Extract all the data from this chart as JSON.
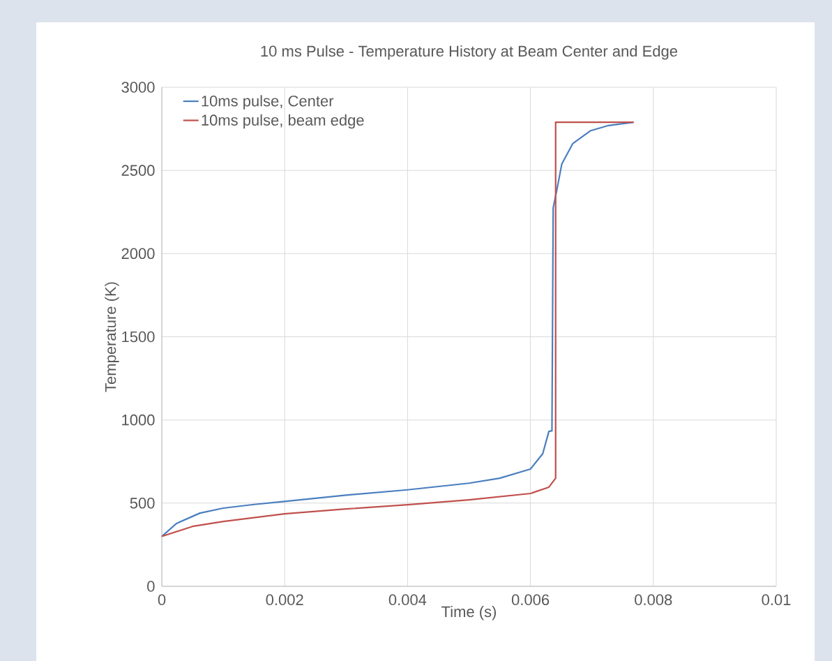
{
  "chart_data": {
    "type": "line",
    "title": "10 ms Pulse - Temperature History at Beam Center and Edge",
    "xlabel": "Time (s)",
    "ylabel": "Temperature (K)",
    "xlim": [
      0,
      0.01
    ],
    "xticks": [
      0,
      0.002,
      0.004,
      0.006,
      0.008,
      0.01
    ],
    "ylim": [
      0,
      3000
    ],
    "yticks": [
      0,
      500,
      1000,
      1500,
      2000,
      2500,
      3000
    ],
    "grid": true,
    "legend": "top left",
    "marker": "none",
    "line_style": "solid",
    "series": [
      {
        "name": "10ms pulse, Center",
        "color": "#4a7ebf",
        "x": [
          0,
          0.00024,
          0.00062,
          0.001,
          0.0015,
          0.002,
          0.003,
          0.004,
          0.005,
          0.0055,
          0.006,
          0.0062,
          0.0063,
          0.00635,
          0.00637,
          0.00643,
          0.00651,
          0.00669,
          0.00698,
          0.00727,
          0.00768
        ],
        "values": [
          300,
          378,
          440,
          470,
          492,
          510,
          548,
          580,
          620,
          650,
          705,
          797,
          931,
          935,
          2274,
          2383,
          2538,
          2662,
          2739,
          2770,
          2790
        ]
      },
      {
        "name": "10ms pulse, beam edge",
        "color": "#c0504d",
        "x": [
          0,
          0.0005,
          0.001,
          0.002,
          0.003,
          0.004,
          0.005,
          0.006,
          0.0063,
          0.00641,
          0.00641,
          0.00768
        ],
        "values": [
          300,
          360,
          390,
          436,
          465,
          490,
          520,
          558,
          596,
          650,
          2790,
          2790
        ]
      }
    ]
  }
}
